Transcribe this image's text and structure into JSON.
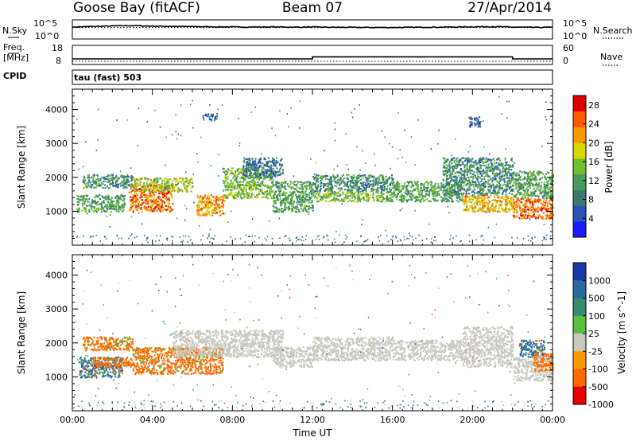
{
  "header": {
    "station": "Goose Bay (fitACF)",
    "beam": "Beam 07",
    "date": "27/Apr/2014"
  },
  "left_labels": {
    "nsky": "N.Sky",
    "freq": "Freq.",
    "mhz": "[MHz]",
    "cpid": "CPID"
  },
  "right_labels": {
    "nsearch": "N.Search",
    "nave": "Nave"
  },
  "cpid_text": "tau (fast) 503",
  "colors": {
    "power": [
      "#1a1aff",
      "#2a52b8",
      "#3a7a6e",
      "#4a9a60",
      "#70c030",
      "#d8d800",
      "#ff9900",
      "#ff5a00",
      "#e00000"
    ],
    "velocity": [
      "#1a3aaa",
      "#2a6aa0",
      "#3a8a70",
      "#5ac040",
      "#c8c8c0",
      "#ff9900",
      "#ff6a00",
      "#e80000"
    ],
    "ground_scatter": "#c8c8c0"
  },
  "chart_data": [
    {
      "type": "line",
      "panel": "noise",
      "series": [
        {
          "name": "N.Sky",
          "style": "solid",
          "x": [
            0,
            1,
            2,
            3,
            4,
            5,
            6,
            7,
            8,
            9,
            10,
            11,
            12,
            13,
            14,
            15,
            16,
            17,
            18,
            19,
            20,
            21,
            22,
            23,
            24
          ],
          "values": [
            1200,
            1800,
            2500,
            3000,
            2200,
            1900,
            1700,
            1500,
            1400,
            1300,
            1400,
            1200,
            1300,
            1100,
            1100,
            1000,
            1000,
            1100,
            1200,
            1300,
            1500,
            1700,
            1200,
            1100,
            1100
          ]
        },
        {
          "name": "N.Search",
          "style": "dotted",
          "x": [
            0,
            24
          ],
          "values": [
            1000,
            1000
          ]
        }
      ],
      "ylim_left": [
        1,
        100000
      ],
      "yscale": "log",
      "left_ticks": [
        "10^5",
        "10^0"
      ],
      "right_ticks": [
        "10^5",
        "10^0"
      ]
    },
    {
      "type": "line",
      "panel": "frequency",
      "series": [
        {
          "name": "Freq.",
          "style": "solid",
          "x": [
            0,
            12,
            12,
            22,
            22,
            24
          ],
          "values": [
            10.9,
            10.9,
            12.0,
            12.0,
            10.9,
            10.9
          ]
        },
        {
          "name": "Nave",
          "style": "dotted",
          "x": [
            0,
            24
          ],
          "values": [
            10,
            10
          ]
        }
      ],
      "left_ticks": [
        "18",
        "8"
      ],
      "right_ticks": [
        "60",
        "0"
      ],
      "ylim_left": [
        8,
        18
      ],
      "ylim_right": [
        0,
        60
      ]
    },
    {
      "type": "heatmap",
      "panel": "power",
      "ylabel": "Slant Range [km]",
      "xlim": [
        0,
        24
      ],
      "ylim": [
        0,
        4600
      ],
      "yticks": [
        1000,
        2000,
        3000,
        4000
      ],
      "colorbar": {
        "label": "Power [dB]",
        "ticks": [
          4,
          8,
          12,
          16,
          20,
          24,
          28
        ],
        "range": [
          0,
          30
        ]
      },
      "regions": [
        {
          "t0": 0.2,
          "t1": 2.6,
          "r0": 1000,
          "r1": 1500,
          "value": 12
        },
        {
          "t0": 0.5,
          "t1": 3.0,
          "r0": 1700,
          "r1": 2100,
          "value": 10
        },
        {
          "t0": 2.8,
          "t1": 5.0,
          "r0": 1000,
          "r1": 1800,
          "value": 24
        },
        {
          "t0": 3.0,
          "t1": 6.0,
          "r0": 1600,
          "r1": 2000,
          "value": 16
        },
        {
          "t0": 6.2,
          "t1": 7.6,
          "r0": 900,
          "r1": 1500,
          "value": 22
        },
        {
          "t0": 7.5,
          "t1": 10.0,
          "r0": 1400,
          "r1": 2300,
          "value": 14
        },
        {
          "t0": 8.5,
          "t1": 10.5,
          "r0": 2000,
          "r1": 2600,
          "value": 8
        },
        {
          "t0": 10.0,
          "t1": 12.0,
          "r0": 1000,
          "r1": 1900,
          "value": 12
        },
        {
          "t0": 12.0,
          "t1": 16.0,
          "r0": 1600,
          "r1": 2100,
          "value": 10
        },
        {
          "t0": 12.0,
          "t1": 16.0,
          "r0": 1300,
          "r1": 1600,
          "value": 14
        },
        {
          "t0": 16.0,
          "t1": 19.5,
          "r0": 1300,
          "r1": 1900,
          "value": 12
        },
        {
          "t0": 18.5,
          "t1": 22.0,
          "r0": 1500,
          "r1": 2600,
          "value": 10
        },
        {
          "t0": 19.5,
          "t1": 22.0,
          "r0": 1000,
          "r1": 1500,
          "value": 20
        },
        {
          "t0": 22.0,
          "t1": 24.0,
          "r0": 800,
          "r1": 1400,
          "value": 24
        },
        {
          "t0": 22.0,
          "t1": 24.0,
          "r0": 1400,
          "r1": 2200,
          "value": 12
        },
        {
          "t0": 6.5,
          "t1": 7.2,
          "r0": 3700,
          "r1": 3900,
          "value": 6
        },
        {
          "t0": 19.8,
          "t1": 20.4,
          "r0": 3500,
          "r1": 3800,
          "value": 6
        }
      ]
    },
    {
      "type": "heatmap",
      "panel": "velocity",
      "ylabel": "Slant Range [km]",
      "xlabel": "Time UT",
      "xlim": [
        0,
        24
      ],
      "ylim": [
        0,
        4600
      ],
      "yticks": [
        1000,
        2000,
        3000,
        4000
      ],
      "xticks": [
        "00:00",
        "04:00",
        "08:00",
        "12:00",
        "16:00",
        "20:00",
        "00:00"
      ],
      "colorbar": {
        "label": "Velocity [m s^-1]",
        "ticks": [
          1000,
          500,
          100,
          25,
          -25,
          -100,
          -500,
          -1000
        ]
      },
      "regions": [
        {
          "t0": 0.3,
          "t1": 2.5,
          "r0": 1000,
          "r1": 1600,
          "value": 500
        },
        {
          "t0": 1.0,
          "t1": 3.0,
          "r0": 1300,
          "r1": 1600,
          "value": -500
        },
        {
          "t0": 3.0,
          "t1": 7.5,
          "r0": 1100,
          "r1": 1900,
          "value": -500
        },
        {
          "t0": 0.5,
          "t1": 3.0,
          "r0": 1800,
          "r1": 2200,
          "value": -100
        },
        {
          "t0": 5.0,
          "t1": 10.5,
          "r0": 1600,
          "r1": 2400,
          "value": 0
        },
        {
          "t0": 10.0,
          "t1": 12.0,
          "r0": 1300,
          "r1": 1900,
          "value": 0
        },
        {
          "t0": 12.0,
          "t1": 16.0,
          "r0": 1500,
          "r1": 2200,
          "value": 0
        },
        {
          "t0": 16.0,
          "t1": 19.5,
          "r0": 1500,
          "r1": 2100,
          "value": 0
        },
        {
          "t0": 19.5,
          "t1": 22.0,
          "r0": 1300,
          "r1": 2500,
          "value": 0
        },
        {
          "t0": 22.0,
          "t1": 24.0,
          "r0": 900,
          "r1": 1600,
          "value": 0
        },
        {
          "t0": 22.3,
          "t1": 23.6,
          "r0": 1600,
          "r1": 2100,
          "value": 500
        },
        {
          "t0": 23.0,
          "t1": 24.0,
          "r0": 1200,
          "r1": 1700,
          "value": -500
        }
      ]
    }
  ]
}
